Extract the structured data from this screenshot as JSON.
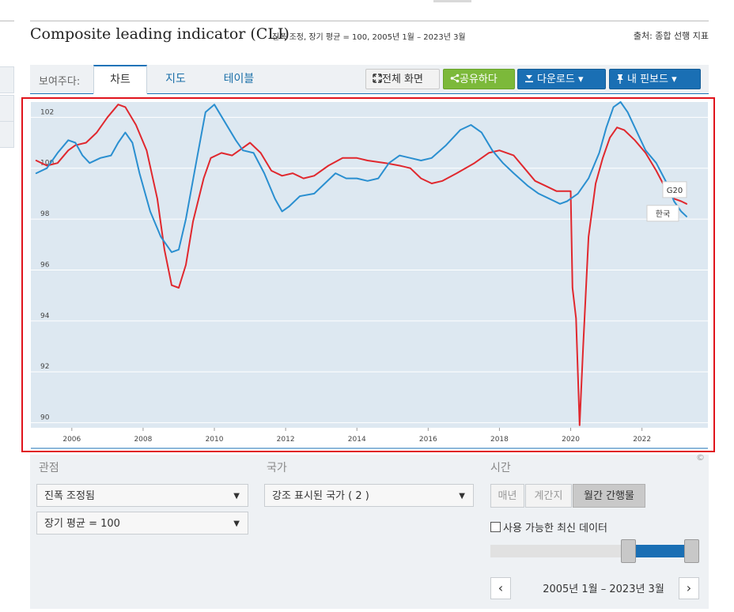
{
  "header": {
    "title": "Composite leading indicator (CLI)",
    "subtitle": "진폭 조정, 장기 평균 = 100, 2005년 1월 – 2023년 3월",
    "source": "출처: 종합 선행 지표"
  },
  "tabs": {
    "prefix": "보여주다:",
    "items": [
      "차트",
      "지도",
      "테이블"
    ],
    "active": "차트"
  },
  "toolbar": {
    "fullscreen": "전체 화면",
    "share": "공유하다",
    "download": "다운로드 ▾",
    "pin": "내 핀보드 ▾"
  },
  "chart_data": {
    "type": "line",
    "title": "",
    "xlabel": "",
    "ylabel": "",
    "xlim": [
      2004.85,
      2023.85
    ],
    "ylim": [
      89.8,
      102.6
    ],
    "x_ticks": [
      2006,
      2008,
      2010,
      2012,
      2014,
      2016,
      2018,
      2020,
      2022
    ],
    "y_ticks": [
      90,
      92,
      94,
      96,
      98,
      100,
      102
    ],
    "grid": true,
    "series": [
      {
        "name": "G20",
        "color": "#2a8fd0",
        "points": [
          [
            2005.0,
            99.8
          ],
          [
            2005.3,
            100.0
          ],
          [
            2005.6,
            100.6
          ],
          [
            2005.9,
            101.1
          ],
          [
            2006.1,
            101.0
          ],
          [
            2006.3,
            100.5
          ],
          [
            2006.5,
            100.2
          ],
          [
            2006.8,
            100.4
          ],
          [
            2007.1,
            100.5
          ],
          [
            2007.3,
            101.0
          ],
          [
            2007.5,
            101.4
          ],
          [
            2007.7,
            101.0
          ],
          [
            2007.9,
            99.8
          ],
          [
            2008.2,
            98.3
          ],
          [
            2008.5,
            97.3
          ],
          [
            2008.8,
            96.7
          ],
          [
            2009.0,
            96.8
          ],
          [
            2009.2,
            98.0
          ],
          [
            2009.5,
            100.3
          ],
          [
            2009.75,
            102.2
          ],
          [
            2010.0,
            102.5
          ],
          [
            2010.3,
            101.8
          ],
          [
            2010.6,
            101.1
          ],
          [
            2010.8,
            100.7
          ],
          [
            2011.1,
            100.6
          ],
          [
            2011.4,
            99.8
          ],
          [
            2011.7,
            98.8
          ],
          [
            2011.9,
            98.3
          ],
          [
            2012.1,
            98.5
          ],
          [
            2012.4,
            98.9
          ],
          [
            2012.8,
            99.0
          ],
          [
            2013.1,
            99.4
          ],
          [
            2013.4,
            99.8
          ],
          [
            2013.7,
            99.6
          ],
          [
            2014.0,
            99.6
          ],
          [
            2014.3,
            99.5
          ],
          [
            2014.6,
            99.6
          ],
          [
            2014.9,
            100.2
          ],
          [
            2015.2,
            100.5
          ],
          [
            2015.5,
            100.4
          ],
          [
            2015.8,
            100.3
          ],
          [
            2016.1,
            100.4
          ],
          [
            2016.5,
            100.9
          ],
          [
            2016.9,
            101.5
          ],
          [
            2017.2,
            101.7
          ],
          [
            2017.5,
            101.4
          ],
          [
            2017.8,
            100.7
          ],
          [
            2018.1,
            100.2
          ],
          [
            2018.4,
            99.8
          ],
          [
            2018.8,
            99.3
          ],
          [
            2019.1,
            99.0
          ],
          [
            2019.4,
            98.8
          ],
          [
            2019.7,
            98.6
          ],
          [
            2019.9,
            98.7
          ],
          [
            2020.2,
            99.0
          ],
          [
            2020.5,
            99.6
          ],
          [
            2020.8,
            100.6
          ],
          [
            2021.0,
            101.6
          ],
          [
            2021.2,
            102.4
          ],
          [
            2021.4,
            102.6
          ],
          [
            2021.6,
            102.2
          ],
          [
            2021.9,
            101.3
          ],
          [
            2022.1,
            100.7
          ],
          [
            2022.4,
            100.2
          ],
          [
            2022.7,
            99.4
          ],
          [
            2022.9,
            98.7
          ],
          [
            2023.1,
            98.3
          ],
          [
            2023.25,
            98.1
          ]
        ]
      },
      {
        "name": "한국",
        "color": "#e0282e",
        "points": [
          [
            2005.0,
            100.3
          ],
          [
            2005.3,
            100.1
          ],
          [
            2005.6,
            100.2
          ],
          [
            2005.9,
            100.7
          ],
          [
            2006.1,
            100.9
          ],
          [
            2006.4,
            101.0
          ],
          [
            2006.7,
            101.4
          ],
          [
            2007.0,
            102.0
          ],
          [
            2007.3,
            102.5
          ],
          [
            2007.5,
            102.4
          ],
          [
            2007.8,
            101.7
          ],
          [
            2008.1,
            100.7
          ],
          [
            2008.4,
            98.8
          ],
          [
            2008.6,
            96.8
          ],
          [
            2008.8,
            95.4
          ],
          [
            2009.0,
            95.3
          ],
          [
            2009.2,
            96.2
          ],
          [
            2009.4,
            97.9
          ],
          [
            2009.7,
            99.6
          ],
          [
            2009.9,
            100.4
          ],
          [
            2010.2,
            100.6
          ],
          [
            2010.5,
            100.5
          ],
          [
            2010.8,
            100.8
          ],
          [
            2011.0,
            101.0
          ],
          [
            2011.3,
            100.6
          ],
          [
            2011.6,
            99.9
          ],
          [
            2011.9,
            99.7
          ],
          [
            2012.2,
            99.8
          ],
          [
            2012.5,
            99.6
          ],
          [
            2012.8,
            99.7
          ],
          [
            2013.2,
            100.1
          ],
          [
            2013.6,
            100.4
          ],
          [
            2014.0,
            100.4
          ],
          [
            2014.3,
            100.3
          ],
          [
            2014.8,
            100.2
          ],
          [
            2015.2,
            100.1
          ],
          [
            2015.5,
            100.0
          ],
          [
            2015.8,
            99.6
          ],
          [
            2016.1,
            99.4
          ],
          [
            2016.4,
            99.5
          ],
          [
            2016.8,
            99.8
          ],
          [
            2017.3,
            100.2
          ],
          [
            2017.7,
            100.6
          ],
          [
            2018.0,
            100.7
          ],
          [
            2018.4,
            100.5
          ],
          [
            2018.7,
            100.0
          ],
          [
            2019.0,
            99.5
          ],
          [
            2019.3,
            99.3
          ],
          [
            2019.6,
            99.1
          ],
          [
            2020.0,
            99.1
          ],
          [
            2020.05,
            95.3
          ],
          [
            2020.15,
            94.1
          ],
          [
            2020.25,
            89.9
          ],
          [
            2020.35,
            93.0
          ],
          [
            2020.5,
            97.3
          ],
          [
            2020.7,
            99.4
          ],
          [
            2020.9,
            100.4
          ],
          [
            2021.1,
            101.2
          ],
          [
            2021.3,
            101.6
          ],
          [
            2021.5,
            101.5
          ],
          [
            2021.8,
            101.1
          ],
          [
            2022.1,
            100.6
          ],
          [
            2022.4,
            99.9
          ],
          [
            2022.7,
            99.1
          ],
          [
            2022.9,
            98.8
          ],
          [
            2023.1,
            98.7
          ],
          [
            2023.25,
            98.6
          ]
        ]
      }
    ]
  },
  "controls": {
    "perspective": {
      "label": "관점",
      "select1": "진폭 조정됨",
      "select2": "장기 평균 = 100"
    },
    "country": {
      "label": "국가",
      "select": "강조 표시된 국가 ( 2 )"
    },
    "time": {
      "label": "시간",
      "options": [
        "매년",
        "계간지",
        "월간 간행물"
      ],
      "active": "월간 간행물",
      "latest_checkbox": "사용 가능한 최신 데이터",
      "range_text": "2005년 1월 – 2023년 3월",
      "prev": "‹",
      "next": "›"
    }
  },
  "copyright": "©"
}
